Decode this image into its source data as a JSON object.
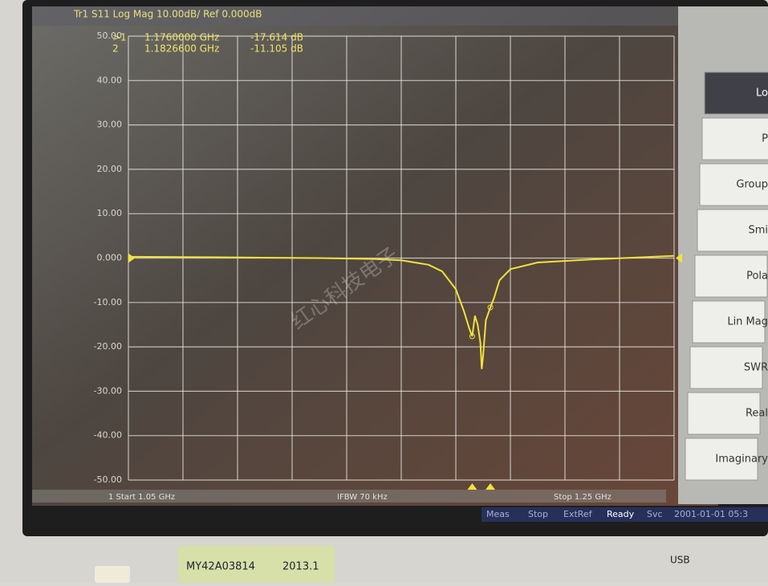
{
  "chart_data": {
    "type": "line",
    "title": "Tr1 S11 Log Mag 10.00dB/ Ref 0.000dB",
    "start_label": "1 Start 1.05 GHz",
    "ifbw_label": "IFBW 70 kHz",
    "stop_label": "Stop 1.25 GHz",
    "xlim": [
      1.05,
      1.25
    ],
    "ylim": [
      -50,
      50
    ],
    "yticks": [
      {
        "value": 50,
        "label": "50.00"
      },
      {
        "value": 40,
        "label": "40.00"
      },
      {
        "value": 30,
        "label": "30.00"
      },
      {
        "value": 20,
        "label": "20.00"
      },
      {
        "value": 10,
        "label": "10.00"
      },
      {
        "value": 0,
        "label": "0.000"
      },
      {
        "value": -10,
        "label": "-10.00"
      },
      {
        "value": -20,
        "label": "-20.00"
      },
      {
        "value": -30,
        "label": "-30.00"
      },
      {
        "value": -40,
        "label": "-40.00"
      },
      {
        "value": -50,
        "label": "-50.00"
      }
    ],
    "grid": true,
    "x": [
      1.05,
      1.08,
      1.1,
      1.12,
      1.14,
      1.15,
      1.16,
      1.165,
      1.17,
      1.173,
      1.175,
      1.176,
      1.177,
      1.178,
      1.179,
      1.1795,
      1.18,
      1.181,
      1.18266,
      1.184,
      1.186,
      1.19,
      1.2,
      1.22,
      1.25
    ],
    "series": [
      {
        "name": "S11",
        "color": "#f2e23a",
        "values": [
          0.3,
          0.2,
          0.1,
          0,
          -0.2,
          -0.5,
          -1.5,
          -3,
          -7,
          -12,
          -16,
          -17.614,
          -13,
          -15,
          -19,
          -25,
          -22,
          -14,
          -11.105,
          -9,
          -5,
          -2.5,
          -1,
          -0.3,
          0.5
        ]
      }
    ],
    "markers": [
      {
        "label": ">1",
        "x": 1.176,
        "x_label": "1.1760000 GHz",
        "y": -17.614,
        "y_label": "-17.614 dB"
      },
      {
        "label": "2",
        "x": 1.18266,
        "x_label": "1.1826600 GHz",
        "y": -11.105,
        "y_label": "-11.105 dB"
      }
    ]
  },
  "softkeys": [
    "Lo",
    "P",
    "Group",
    "Smi",
    "Pola",
    "Lin Mag",
    "SWR",
    "Real",
    "Imaginary"
  ],
  "status_bar": [
    "Meas",
    "Stop",
    "ExtRef",
    "Ready",
    "Svc",
    "2001-01-01 05:3"
  ],
  "watermark": "红心科技电子",
  "sticker": [
    "MY42A03814",
    "2013.1"
  ],
  "usb_label": "USB"
}
